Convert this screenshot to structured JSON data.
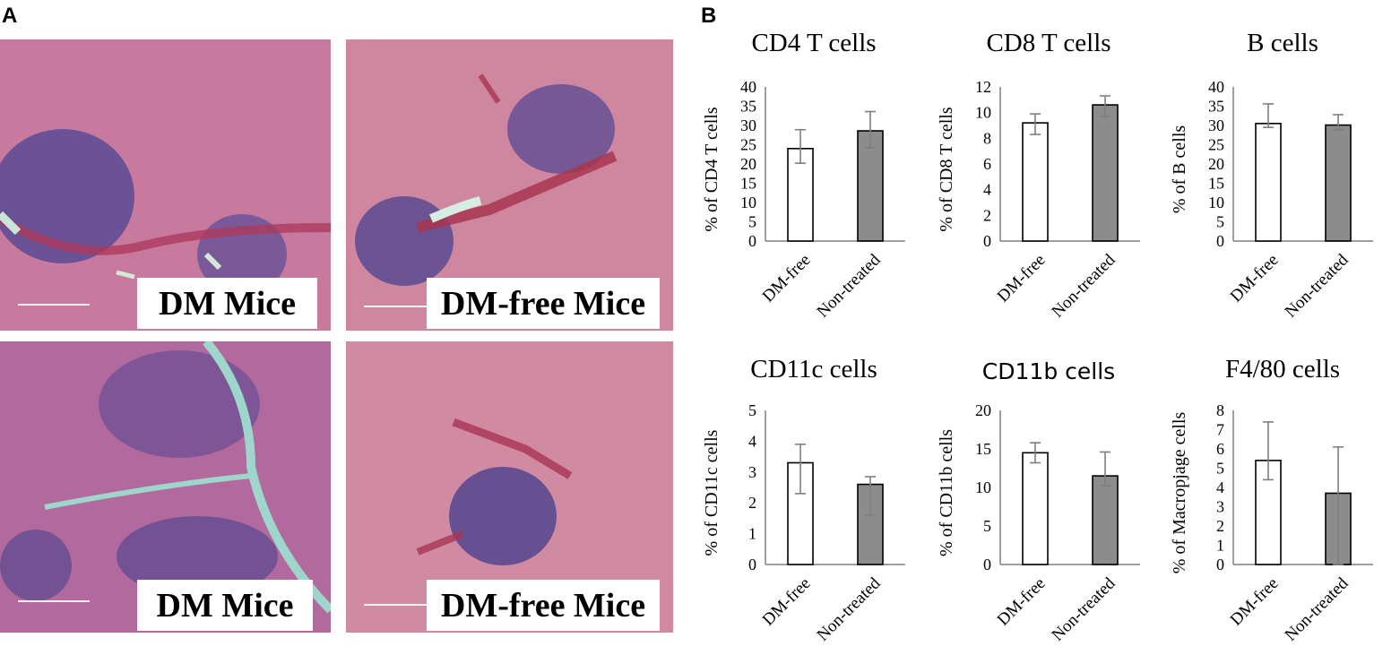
{
  "panel_a": {
    "letter": "A",
    "images": [
      {
        "label": "DM Mice"
      },
      {
        "label": "DM-free Mice"
      },
      {
        "label": "DM Mice"
      },
      {
        "label": "DM-free Mice"
      }
    ]
  },
  "panel_b": {
    "letter": "B"
  },
  "colors": {
    "dm_free_bar": "#ffffff",
    "non_treated_bar": "#8c8c8c",
    "error_bar": "#7f7f7f",
    "axis": "#808080"
  },
  "chart_data": [
    {
      "type": "bar",
      "title": "CD4 T cells",
      "ylabel": "% of CD4 T cells",
      "categories": [
        "DM-free",
        "Non-treated"
      ],
      "values": [
        24,
        28.6
      ],
      "error_low": [
        20.2,
        24.2
      ],
      "error_high": [
        28.9,
        33.6
      ],
      "ylim": [
        0,
        40
      ],
      "yticks": [
        "0",
        "5",
        "10",
        "15",
        "20",
        "25",
        "30",
        "35",
        "40"
      ],
      "grid": false
    },
    {
      "type": "bar",
      "title": "CD8 T cells",
      "ylabel": "% of CD8 T cells",
      "categories": [
        "DM-free",
        "Non-treated"
      ],
      "values": [
        9.2,
        10.6
      ],
      "error_low": [
        8.3,
        9.7
      ],
      "error_high": [
        9.9,
        11.3
      ],
      "ylim": [
        0,
        12
      ],
      "yticks": [
        "0",
        "2",
        "4",
        "6",
        "8",
        "10",
        "12"
      ],
      "grid": false
    },
    {
      "type": "bar",
      "title": "B cells",
      "ylabel": "% of  B cells",
      "categories": [
        "DM-free",
        "Non-treated"
      ],
      "values": [
        30.5,
        30.1
      ],
      "error_low": [
        29.5,
        28.9
      ],
      "error_high": [
        35.6,
        32.8
      ],
      "ylim": [
        0,
        40
      ],
      "yticks": [
        "0",
        "5",
        "10",
        "15",
        "20",
        "25",
        "30",
        "35",
        "40"
      ],
      "grid": false
    },
    {
      "type": "bar",
      "title": "CD11c cells",
      "ylabel": "% of CD11c cells",
      "categories": [
        "DM-free",
        "Non-treated"
      ],
      "values": [
        3.3,
        2.6
      ],
      "error_low": [
        2.3,
        1.6
      ],
      "error_high": [
        3.9,
        2.85
      ],
      "ylim": [
        0,
        5
      ],
      "yticks": [
        "0",
        "1",
        "2",
        "3",
        "4",
        "5"
      ],
      "grid": false
    },
    {
      "type": "bar",
      "title": "CD11b cells",
      "title_font": "sans",
      "ylabel": "% of CD11b cells",
      "categories": [
        "DM-free",
        "Non-treated"
      ],
      "values": [
        14.5,
        11.5
      ],
      "error_low": [
        13.2,
        10.2
      ],
      "error_high": [
        15.8,
        14.6
      ],
      "ylim": [
        0,
        20
      ],
      "yticks": [
        "0",
        "5",
        "10",
        "15",
        "20"
      ],
      "grid": false
    },
    {
      "type": "bar",
      "title": "F4/80 cells",
      "ylabel": "% of Macropjage cells",
      "categories": [
        "DM-free",
        "Non-treated"
      ],
      "values": [
        5.4,
        3.7
      ],
      "error_low": [
        4.4,
        0
      ],
      "error_high": [
        7.4,
        6.1
      ],
      "ylim": [
        0,
        8
      ],
      "yticks": [
        "0",
        "1",
        "2",
        "3",
        "4",
        "5",
        "6",
        "7",
        "8"
      ],
      "grid": false
    }
  ]
}
